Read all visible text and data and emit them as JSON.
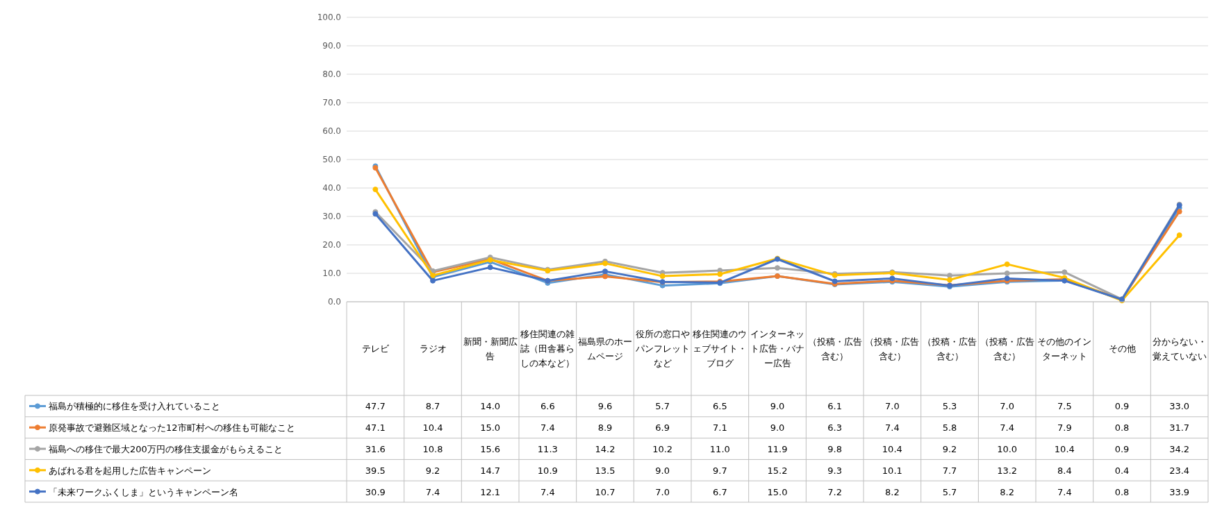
{
  "chart_data": {
    "type": "line",
    "categories": [
      "テレビ",
      "ラジオ",
      "新聞・新聞広告",
      "移住関連の雑誌（田舎暮らしの本など）",
      "福島県のホームページ",
      "役所の窓口やパンフレットなど",
      "移住関連のウェブサイト・ブログ",
      "インターネット広告・バナー広告",
      "（投稿・広告含む）",
      "（投稿・広告含む）",
      "（投稿・広告含む）",
      "（投稿・広告含む）",
      "その他のインターネット",
      "その他",
      "分からない・覚えていない"
    ],
    "series": [
      {
        "name": "福島が積極的に移住を受け入れていること",
        "color": "#5b9bd5",
        "values": [
          47.7,
          8.7,
          14.0,
          6.6,
          9.6,
          5.7,
          6.5,
          9.0,
          6.1,
          7.0,
          5.3,
          7.0,
          7.5,
          0.9,
          33.0
        ],
        "value_labels": [
          "47.7",
          "8.7",
          "14.0",
          "6.6",
          "9.6",
          "5.7",
          "6.5",
          "9.0",
          "6.1",
          "7.0",
          "5.3",
          "7.0",
          "7.5",
          "0.9",
          "33.0"
        ]
      },
      {
        "name": "原発事故で避難区域となった12市町村への移住も可能なこと",
        "color": "#ed7d31",
        "values": [
          47.1,
          10.4,
          15.0,
          7.4,
          8.9,
          6.9,
          7.1,
          9.0,
          6.3,
          7.4,
          5.8,
          7.4,
          7.9,
          0.8,
          31.7
        ],
        "value_labels": [
          "47.1",
          "10.4",
          "15.0",
          "7.4",
          "8.9",
          "6.9",
          "7.1",
          "9.0",
          "6.3",
          "7.4",
          "5.8",
          "7.4",
          "7.9",
          "0.8",
          "31.7"
        ]
      },
      {
        "name": "福島への移住で最大200万円の移住支援金がもらえること",
        "color": "#a5a5a5",
        "values": [
          31.6,
          10.8,
          15.6,
          11.3,
          14.2,
          10.2,
          11.0,
          11.9,
          9.8,
          10.4,
          9.2,
          10.0,
          10.4,
          0.9,
          34.2
        ],
        "value_labels": [
          "31.6",
          "10.8",
          "15.6",
          "11.3",
          "14.2",
          "10.2",
          "11.0",
          "11.9",
          "9.8",
          "10.4",
          "9.2",
          "10.0",
          "10.4",
          "0.9",
          "34.2"
        ]
      },
      {
        "name": "あばれる君を起用した広告キャンペーン",
        "color": "#ffc000",
        "values": [
          39.5,
          9.2,
          14.7,
          10.9,
          13.5,
          9.0,
          9.7,
          15.2,
          9.3,
          10.1,
          7.7,
          13.2,
          8.4,
          0.4,
          23.4
        ],
        "value_labels": [
          "39.5",
          "9.2",
          "14.7",
          "10.9",
          "13.5",
          "9.0",
          "9.7",
          "15.2",
          "9.3",
          "10.1",
          "7.7",
          "13.2",
          "8.4",
          "0.4",
          "23.4"
        ]
      },
      {
        "name": "「未来ワークふくしま」というキャンペーン名",
        "color": "#4472c4",
        "values": [
          30.9,
          7.4,
          12.1,
          7.4,
          10.7,
          7.0,
          6.7,
          15.0,
          7.2,
          8.2,
          5.7,
          8.2,
          7.4,
          0.8,
          33.9
        ],
        "value_labels": [
          "30.9",
          "7.4",
          "12.1",
          "7.4",
          "10.7",
          "7.0",
          "6.7",
          "15.0",
          "7.2",
          "8.2",
          "5.7",
          "8.2",
          "7.4",
          "0.8",
          "33.9"
        ]
      }
    ],
    "ylim": [
      0,
      100
    ],
    "yticks": [
      {
        "value": 0,
        "label": "0.0"
      },
      {
        "value": 10,
        "label": "10.0"
      },
      {
        "value": 20,
        "label": "20.0"
      },
      {
        "value": 30,
        "label": "30.0"
      },
      {
        "value": 40,
        "label": "40.0"
      },
      {
        "value": 50,
        "label": "50.0"
      },
      {
        "value": 60,
        "label": "60.0"
      },
      {
        "value": 70,
        "label": "70.0"
      },
      {
        "value": 80,
        "label": "80.0"
      },
      {
        "value": 90,
        "label": "90.0"
      },
      {
        "value": 100,
        "label": "100.0"
      }
    ],
    "grid": "y",
    "marker": "circle",
    "line_style": "solid",
    "legend": "bottom"
  }
}
